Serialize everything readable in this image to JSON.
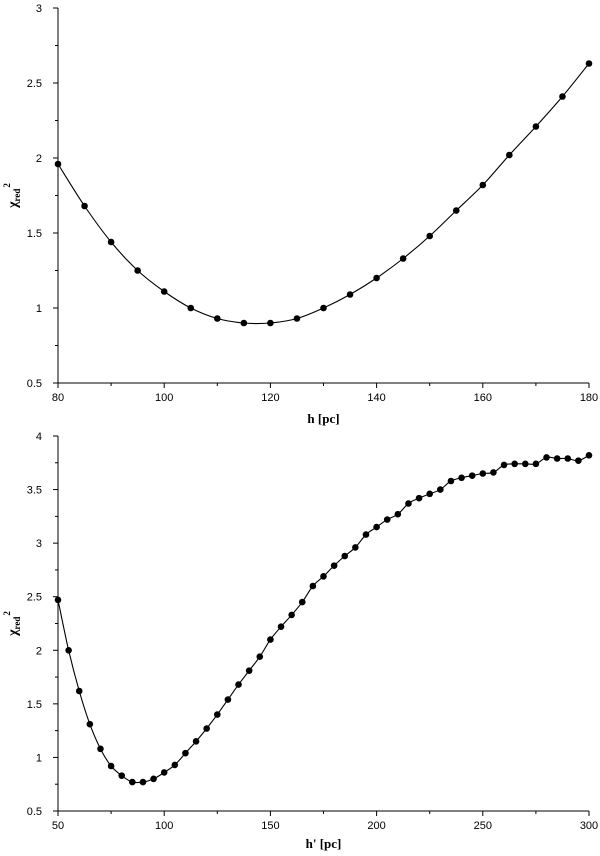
{
  "chart_data": [
    {
      "type": "line",
      "xlabel": "h [pc]",
      "ylabel": "χred²",
      "ylabel_main": "χ",
      "ylabel_sub": "red",
      "ylabel_sup": "2",
      "xlim": [
        80,
        180
      ],
      "ylim": [
        0.5,
        3
      ],
      "xticks": [
        80,
        100,
        120,
        140,
        160,
        180
      ],
      "yticks": [
        0.5,
        1,
        1.5,
        2,
        2.5,
        3
      ],
      "xtick_labels": [
        "80",
        "100",
        "120",
        "140",
        "160",
        "180"
      ],
      "ytick_labels": [
        "0.5",
        "1",
        "1.5",
        "2",
        "2.5",
        "3"
      ],
      "grid": false,
      "series": [
        {
          "color": "#000000",
          "markers": true,
          "x": [
            80,
            85,
            90,
            95,
            100,
            105,
            110,
            115,
            120,
            125,
            130,
            135,
            140,
            145,
            150,
            155,
            160,
            165,
            170,
            175,
            180
          ],
          "y": [
            1.96,
            1.68,
            1.44,
            1.25,
            1.11,
            1.0,
            0.93,
            0.9,
            0.9,
            0.93,
            1.0,
            1.09,
            1.2,
            1.33,
            1.48,
            1.65,
            1.82,
            2.02,
            2.21,
            2.41,
            2.63
          ]
        }
      ]
    },
    {
      "type": "line",
      "xlabel": "h' [pc]",
      "ylabel": "χred²",
      "ylabel_main": "χ",
      "ylabel_sub": "red",
      "ylabel_sup": "2",
      "xlim": [
        50,
        300
      ],
      "ylim": [
        0.5,
        4
      ],
      "xticks": [
        50,
        100,
        150,
        200,
        250,
        300
      ],
      "yticks": [
        0.5,
        1,
        1.5,
        2,
        2.5,
        3,
        3.5,
        4
      ],
      "xtick_labels": [
        "50",
        "100",
        "150",
        "200",
        "250",
        "300"
      ],
      "ytick_labels": [
        "0.5",
        "1",
        "1.5",
        "2",
        "2.5",
        "3",
        "3.5",
        "4"
      ],
      "grid": false,
      "series": [
        {
          "color": "#000000",
          "markers": true,
          "x": [
            50,
            55,
            60,
            65,
            70,
            75,
            80,
            85,
            90,
            95,
            100,
            105,
            110,
            115,
            120,
            125,
            130,
            135,
            140,
            145,
            150,
            155,
            160,
            165,
            170,
            175,
            180,
            185,
            190,
            195,
            200,
            205,
            210,
            215,
            220,
            225,
            230,
            235,
            240,
            245,
            250,
            255,
            260,
            265,
            270,
            275,
            280,
            285,
            290,
            295,
            300
          ],
          "y": [
            2.47,
            2.0,
            1.62,
            1.31,
            1.08,
            0.92,
            0.83,
            0.77,
            0.77,
            0.8,
            0.86,
            0.93,
            1.04,
            1.15,
            1.27,
            1.4,
            1.54,
            1.68,
            1.81,
            1.94,
            2.1,
            2.22,
            2.33,
            2.45,
            2.6,
            2.69,
            2.79,
            2.88,
            2.96,
            3.08,
            3.15,
            3.22,
            3.27,
            3.37,
            3.42,
            3.46,
            3.5,
            3.58,
            3.61,
            3.63,
            3.65,
            3.66,
            3.73,
            3.74,
            3.74,
            3.74,
            3.8,
            3.79,
            3.79,
            3.77,
            3.82
          ]
        }
      ]
    }
  ]
}
